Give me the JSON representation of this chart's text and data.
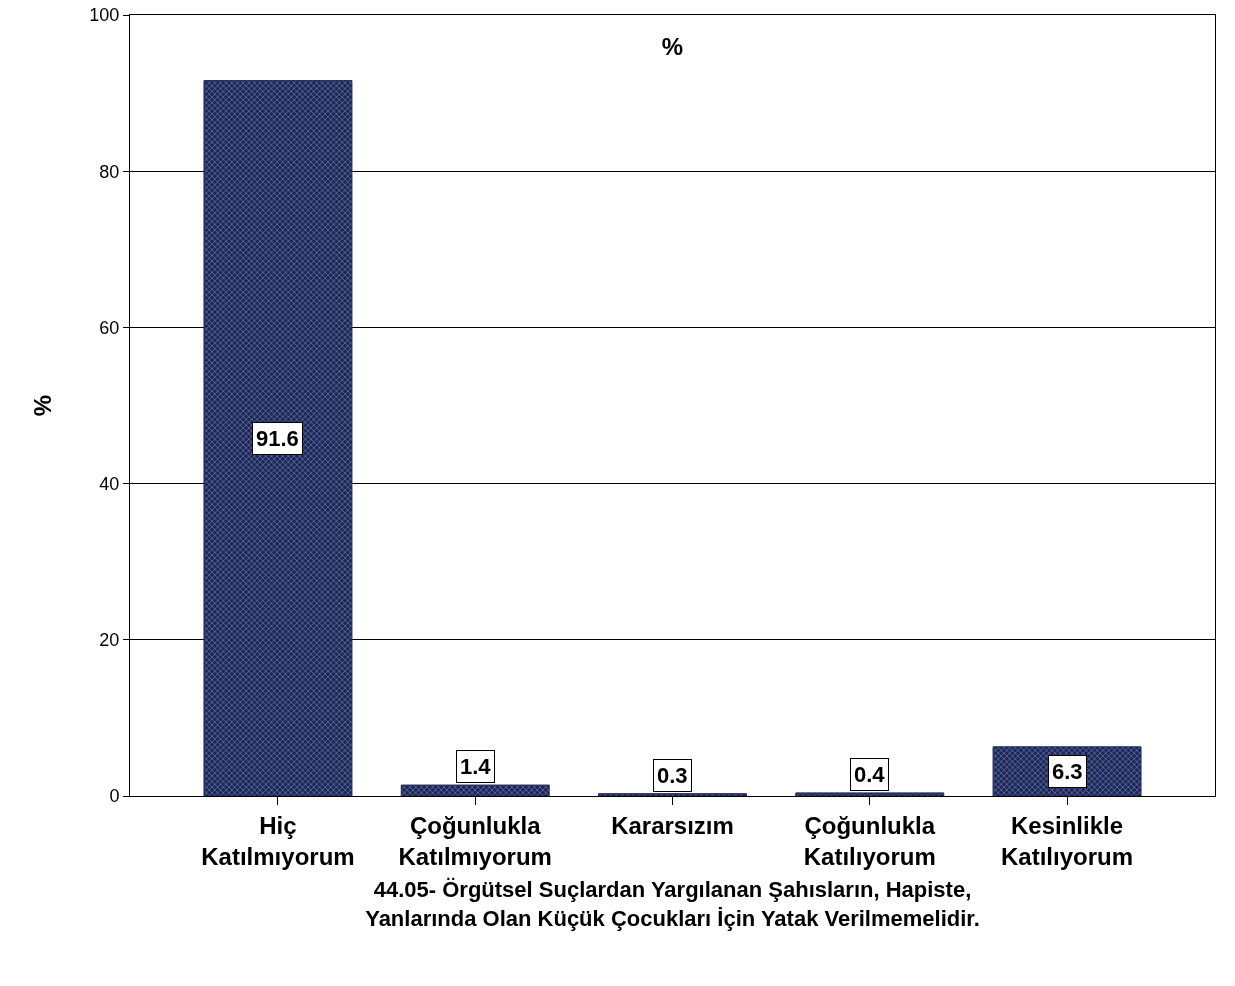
{
  "chart_data": {
    "type": "bar",
    "title": "%",
    "ylabel": "%",
    "xlabel": "44.05- Örgütsel Suçlardan Yargılanan Şahısların, Hapiste, Yanlarında Olan Küçük Çocukları İçin Yatak Verilmemelidir.",
    "categories": [
      "Hiç Katılmıyorum",
      "Çoğunlukla Katılmıyorum",
      "Kararsızım",
      "Çoğunlukla Katılıyorum",
      "Kesinlikle Katılıyorum"
    ],
    "values": [
      91.6,
      1.4,
      0.3,
      0.4,
      6.3
    ],
    "color": "#1c2757",
    "ylim": [
      0,
      100
    ],
    "yticks": [
      0,
      20,
      40,
      60,
      80,
      100
    ],
    "grid": "y",
    "data_labels": true
  }
}
